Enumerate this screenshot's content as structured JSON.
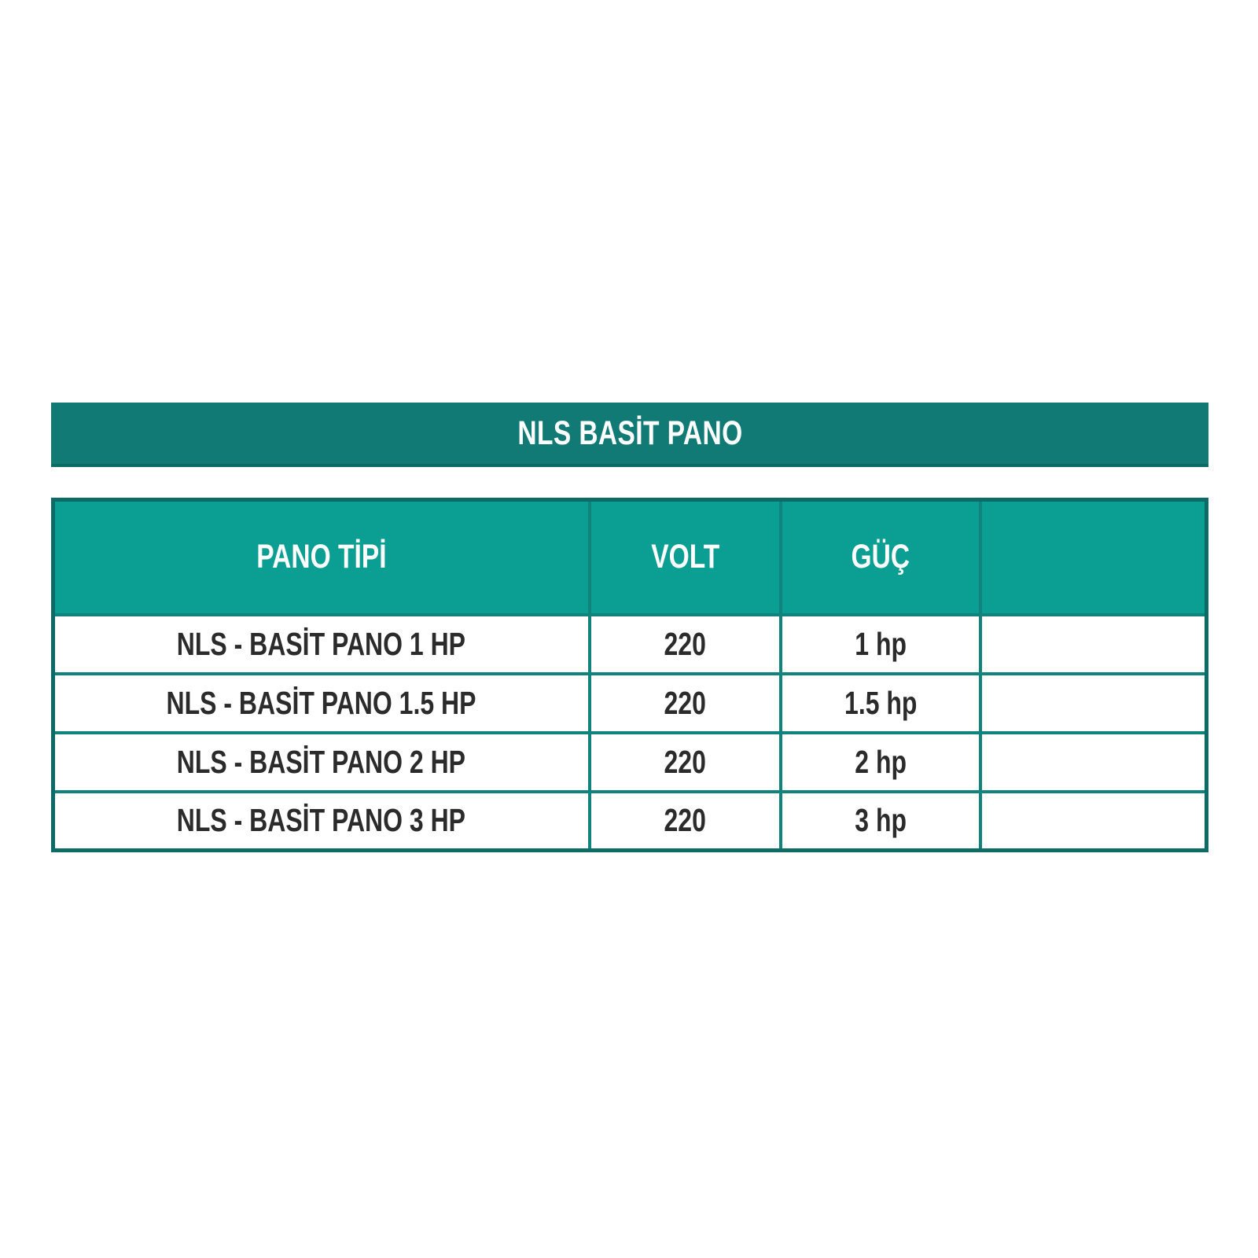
{
  "banner": {
    "title": "NLS BASİT PANO"
  },
  "table": {
    "columns": [
      {
        "label": "PANO TİPİ"
      },
      {
        "label": "VOLT"
      },
      {
        "label": "GÜÇ"
      },
      {
        "label": ""
      }
    ],
    "rows": [
      {
        "pano_tipi": "NLS - BASİT PANO 1 HP",
        "volt": "220",
        "guc": "1 hp",
        "extra": ""
      },
      {
        "pano_tipi": "NLS - BASİT PANO 1.5 HP",
        "volt": "220",
        "guc": "1.5 hp",
        "extra": ""
      },
      {
        "pano_tipi": "NLS - BASİT PANO 2 HP",
        "volt": "220",
        "guc": "2 hp",
        "extra": ""
      },
      {
        "pano_tipi": "NLS - BASİT PANO 3 HP",
        "volt": "220",
        "guc": "3 hp",
        "extra": ""
      }
    ]
  },
  "colors": {
    "banner_bg": "#117a75",
    "banner_edge": "#0d6b66",
    "header_bg": "#0b9e92",
    "border_outer": "#0c6b66",
    "border_inner": "#0f837c",
    "header_text": "#ffffff",
    "row_text": "#2b2b2b",
    "page_bg": "#ffffff"
  }
}
